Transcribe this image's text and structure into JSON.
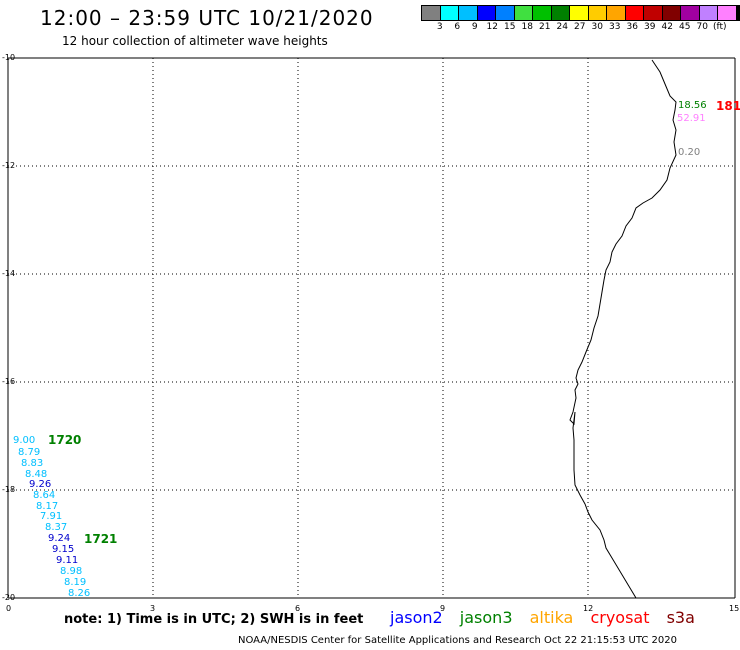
{
  "header": {
    "title": "12:00 – 23:59 UTC 10/21/2020",
    "subtitle": "12 hour collection of altimeter wave heights"
  },
  "color_scale": {
    "colors": [
      "#808080",
      "#00ffff",
      "#00bfff",
      "#0000ff",
      "#0080ff",
      "#40e040",
      "#00c000",
      "#008000",
      "#ffff00",
      "#ffcc00",
      "#ffa500",
      "#ff0000",
      "#c00000",
      "#800000",
      "#a000a0",
      "#c080ff",
      "#ff80ff",
      "#000000"
    ],
    "labels": [
      "3",
      "6",
      "9",
      "12",
      "15",
      "18",
      "21",
      "24",
      "27",
      "30",
      "33",
      "36",
      "39",
      "42",
      "45",
      "70",
      "(ft)"
    ]
  },
  "axes": {
    "y_labels": [
      "-10",
      "-12",
      "-14",
      "-16",
      "-18",
      "-20"
    ],
    "x_labels": [
      "0",
      "3",
      "6",
      "9",
      "12",
      "15"
    ]
  },
  "observations": [
    {
      "value": "18.56",
      "color": "#008000"
    },
    {
      "value": "52.91",
      "color": "#ff80ff"
    },
    {
      "value": "0.20",
      "color": "#808080"
    },
    {
      "value": "9.00",
      "color": "#00bfff"
    },
    {
      "value": "8.79",
      "color": "#00bfff"
    },
    {
      "value": "8.83",
      "color": "#00bfff"
    },
    {
      "value": "8.48",
      "color": "#00bfff"
    },
    {
      "value": "9.26",
      "color": "#0000cc"
    },
    {
      "value": "8.64",
      "color": "#00bfff"
    },
    {
      "value": "8.17",
      "color": "#00bfff"
    },
    {
      "value": "7.91",
      "color": "#00bfff"
    },
    {
      "value": "8.37",
      "color": "#00bfff"
    },
    {
      "value": "9.24",
      "color": "#0000cc"
    },
    {
      "value": "9.15",
      "color": "#0000cc"
    },
    {
      "value": "9.11",
      "color": "#0000cc"
    },
    {
      "value": "8.98",
      "color": "#00bfff"
    },
    {
      "value": "8.19",
      "color": "#00bfff"
    },
    {
      "value": "8.26",
      "color": "#00bfff"
    }
  ],
  "pass_times": [
    {
      "label": "181",
      "color": "#ff0000"
    },
    {
      "label": "1720",
      "color": "#008000"
    },
    {
      "label": "1721",
      "color": "#008000"
    }
  ],
  "note": "note:  1) Time is in UTC;  2) SWH is in feet",
  "satellites": [
    {
      "name": "jason2",
      "color": "#0000ff"
    },
    {
      "name": "jason3",
      "color": "#008000"
    },
    {
      "name": "altika",
      "color": "#ffa500"
    },
    {
      "name": "cryosat",
      "color": "#ff0000"
    },
    {
      "name": "s3a",
      "color": "#800000"
    }
  ],
  "footer": "NOAA/NESDIS Center for Satellite Applications and Research     Oct 22 21:15:53 UTC 2020"
}
